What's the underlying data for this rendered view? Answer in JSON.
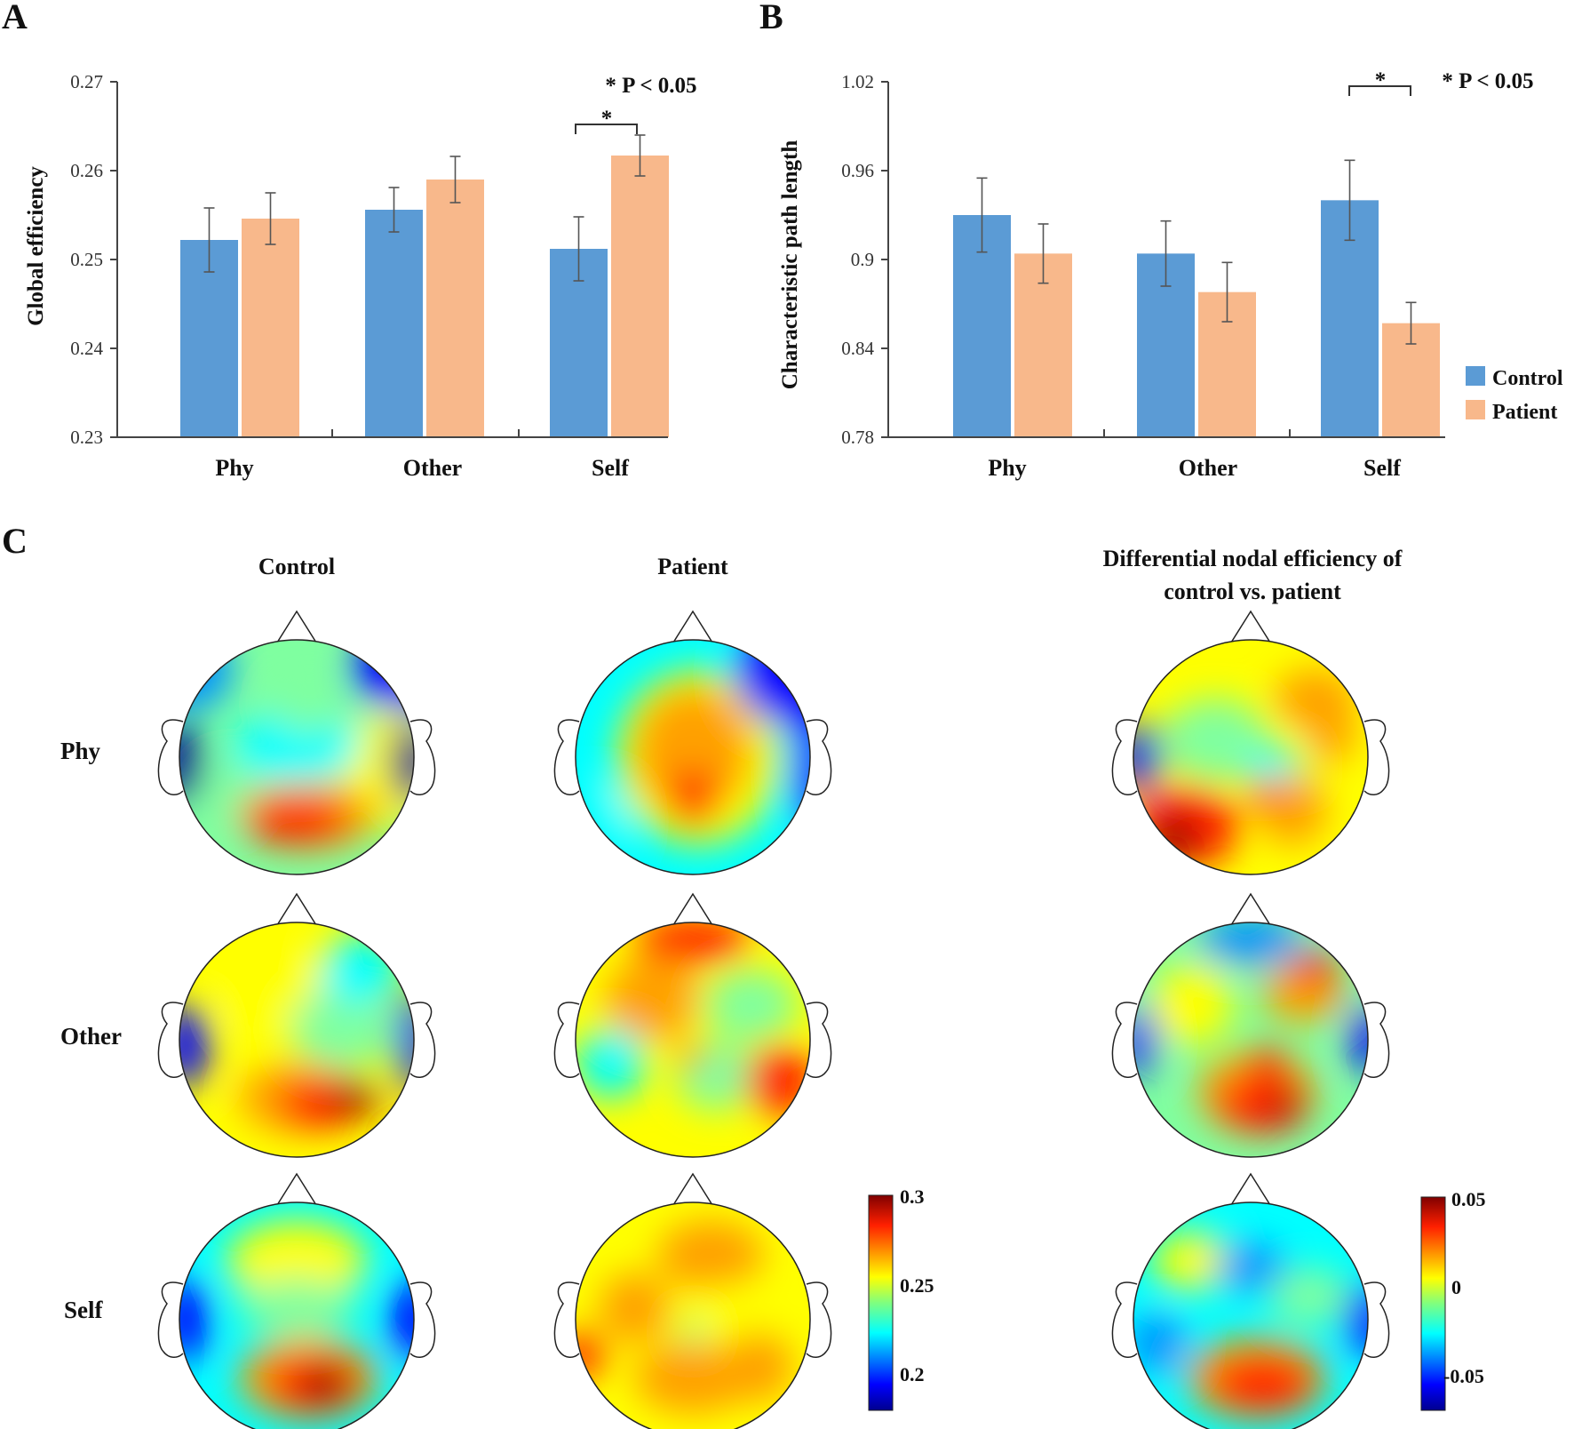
{
  "panels": {
    "A": "A",
    "B": "B",
    "C": "C"
  },
  "colors": {
    "control": "#5b9bd5",
    "patient": "#f8b88b",
    "axis": "#444444",
    "error": "#555555"
  },
  "chart_data": [
    {
      "id": "A",
      "type": "bar",
      "title": "",
      "ylabel": "Global efficiency",
      "xlabel": "",
      "categories": [
        "Phy",
        "Other",
        "Self"
      ],
      "ylim": [
        0.23,
        0.27
      ],
      "yticks": [
        "0.23",
        "0.24",
        "0.25",
        "0.26",
        "0.27"
      ],
      "ytick_values": [
        0.23,
        0.24,
        0.25,
        0.26,
        0.27
      ],
      "series": [
        {
          "name": "Control",
          "values": [
            0.2522,
            0.2556,
            0.2512
          ],
          "errors": [
            0.0036,
            0.0025,
            0.0036
          ]
        },
        {
          "name": "Patient",
          "values": [
            0.2546,
            0.259,
            0.2617
          ],
          "errors": [
            0.0029,
            0.0026,
            0.0023
          ]
        }
      ],
      "significance": {
        "label": "*",
        "category": "Self"
      },
      "annotation": "* P < 0.05"
    },
    {
      "id": "B",
      "type": "bar",
      "title": "",
      "ylabel": "Characteristic  path length",
      "xlabel": "",
      "categories": [
        "Phy",
        "Other",
        "Self"
      ],
      "ylim": [
        0.78,
        1.02
      ],
      "yticks": [
        "0.78",
        "0.84",
        "0.9",
        "0.96",
        "1.02"
      ],
      "ytick_values": [
        0.78,
        0.84,
        0.9,
        0.96,
        1.02
      ],
      "series": [
        {
          "name": "Control",
          "values": [
            0.93,
            0.904,
            0.94
          ],
          "errors": [
            0.025,
            0.022,
            0.027
          ]
        },
        {
          "name": "Patient",
          "values": [
            0.904,
            0.878,
            0.857
          ],
          "errors": [
            0.02,
            0.02,
            0.014
          ]
        }
      ],
      "significance": {
        "label": "*",
        "category": "Self"
      },
      "annotation": "* P < 0.05",
      "legend": [
        "Control",
        "Patient"
      ]
    }
  ],
  "panel_c": {
    "column_titles": [
      "Control",
      "Patient"
    ],
    "diff_title_line1": "Differential  nodal efficiency of",
    "diff_title_line2": "control vs. patient",
    "row_labels": [
      "Phy",
      "Other",
      "Self"
    ],
    "colorbar1": {
      "max": "0.3",
      "mid": "0.25",
      "min": "0.2"
    },
    "colorbar2": {
      "max": "0.05",
      "mid": "0",
      "min": "-0.05"
    }
  }
}
